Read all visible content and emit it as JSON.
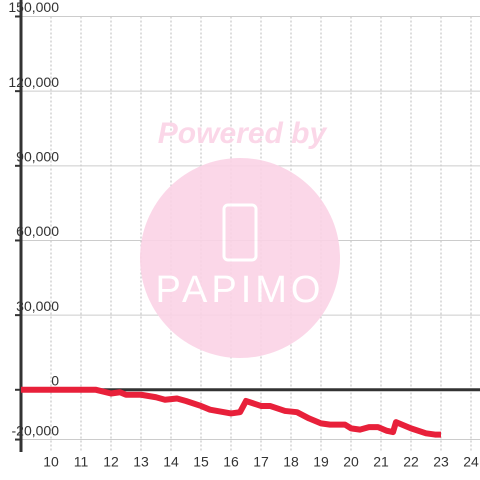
{
  "chart_data": {
    "type": "line",
    "x": [
      9,
      10,
      11,
      11.5,
      12,
      12.3,
      12.5,
      13,
      13.5,
      13.8,
      14.2,
      14.5,
      15,
      15.3,
      16,
      16.3,
      16.5,
      17,
      17.3,
      17.8,
      18.2,
      18.6,
      19,
      19.3,
      19.8,
      20,
      20.3,
      20.6,
      20.9,
      21.2,
      21.4,
      21.5,
      22,
      22.5,
      22.8,
      23
    ],
    "series": [
      {
        "color": "#e8203a",
        "values": [
          0,
          0,
          0,
          0,
          -1500,
          -1000,
          -2000,
          -2000,
          -3000,
          -4000,
          -3500,
          -4500,
          -6500,
          -8000,
          -9500,
          -9000,
          -4500,
          -6500,
          -6500,
          -8500,
          -9000,
          -11500,
          -13500,
          -14000,
          -14000,
          -15500,
          -16000,
          -15000,
          -15000,
          -16500,
          -17000,
          -13000,
          -15500,
          -17500,
          -18000,
          -18000
        ]
      }
    ],
    "xlim": [
      9,
      24.3
    ],
    "xticks": [
      10,
      11,
      12,
      13,
      14,
      15,
      16,
      17,
      18,
      19,
      20,
      21,
      22,
      23,
      24
    ],
    "ylim": [
      -25000,
      150000
    ],
    "yticks": [
      {
        "value": -20000,
        "label": "-20,000"
      },
      0,
      {
        "value": 30000,
        "label": "30,000"
      },
      {
        "value": 60000,
        "label": "60,000"
      },
      {
        "value": 90000,
        "label": "90,000"
      },
      {
        "value": 120000,
        "label": "120,000"
      },
      {
        "value": 150000,
        "label": "150,000"
      }
    ],
    "grid": true,
    "watermark": {
      "text": "Powered by",
      "logo": "PAPIMO"
    }
  }
}
